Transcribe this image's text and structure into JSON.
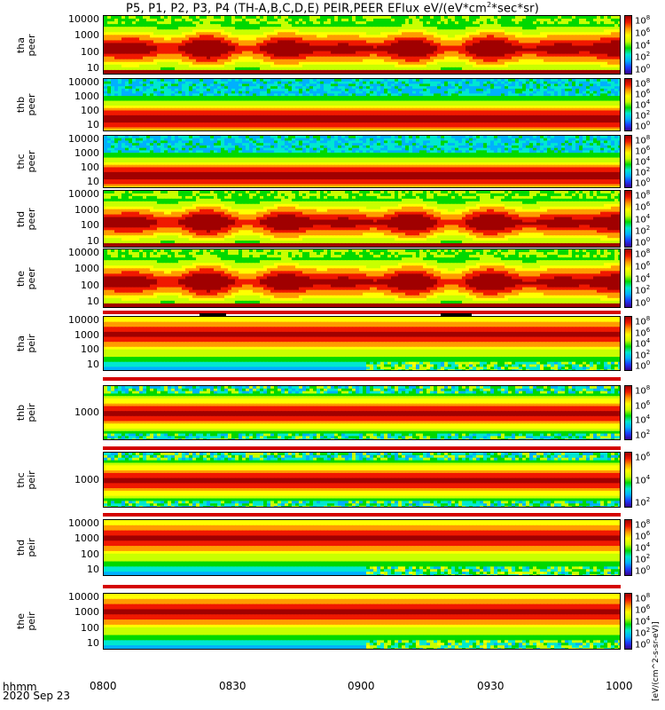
{
  "title": "P5, P1, P2, P3, P4 (TH-A,B,C,D,E) PEIR,PEER EFlux eV/(eV*cm",
  "title_sup": "2",
  "title_tail": "*sec*sr)",
  "time_axis": {
    "label_line1": "hhmm",
    "label_line2": "2020 Sep 23",
    "ticks": [
      "0800",
      "0830",
      "0900",
      "0930",
      "1000"
    ]
  },
  "colorbar_unit": "[eV/(cm^2-s-sr-eV)]",
  "colors": {
    "dark_red": "#a00000",
    "red": "#e80000",
    "orange": "#ff8c00",
    "yellow": "#ffff00",
    "green": "#00d800",
    "cyan": "#00e0ff",
    "blue": "#1a3cff",
    "purple": "#3a0090",
    "bar_red": "#d40000"
  },
  "panels": [
    {
      "probe": "tha",
      "product": "peer",
      "yticks": [
        "10000",
        "1000",
        "100",
        "10"
      ],
      "cticks": [
        [
          "10",
          "8"
        ],
        [
          "10",
          "6"
        ],
        [
          "10",
          "4"
        ],
        [
          "10",
          "2"
        ],
        [
          "10",
          "0"
        ]
      ]
    },
    {
      "probe": "thb",
      "product": "peer",
      "yticks": [
        "10000",
        "1000",
        "100",
        "10"
      ],
      "cticks": [
        [
          "10",
          "8"
        ],
        [
          "10",
          "6"
        ],
        [
          "10",
          "4"
        ],
        [
          "10",
          "2"
        ],
        [
          "10",
          "0"
        ]
      ]
    },
    {
      "probe": "thc",
      "product": "peer",
      "yticks": [
        "10000",
        "1000",
        "100",
        "10"
      ],
      "cticks": [
        [
          "10",
          "8"
        ],
        [
          "10",
          "6"
        ],
        [
          "10",
          "4"
        ],
        [
          "10",
          "2"
        ],
        [
          "10",
          "0"
        ]
      ]
    },
    {
      "probe": "thd",
      "product": "peer",
      "yticks": [
        "10000",
        "1000",
        "100",
        "10"
      ],
      "cticks": [
        [
          "10",
          "8"
        ],
        [
          "10",
          "6"
        ],
        [
          "10",
          "4"
        ],
        [
          "10",
          "2"
        ],
        [
          "10",
          "0"
        ]
      ]
    },
    {
      "probe": "the",
      "product": "peer",
      "yticks": [
        "10000",
        "1000",
        "100",
        "10"
      ],
      "cticks": [
        [
          "10",
          "8"
        ],
        [
          "10",
          "6"
        ],
        [
          "10",
          "4"
        ],
        [
          "10",
          "2"
        ],
        [
          "10",
          "0"
        ]
      ]
    },
    {
      "probe": "tha",
      "product": "peir",
      "yticks": [
        "10000",
        "1000",
        "100",
        "10"
      ],
      "cticks": [
        [
          "10",
          "8"
        ],
        [
          "10",
          "6"
        ],
        [
          "10",
          "4"
        ],
        [
          "10",
          "2"
        ],
        [
          "10",
          "0"
        ]
      ]
    },
    {
      "probe": "thb",
      "product": "peir",
      "yticks": [
        "1000"
      ],
      "cticks": [
        [
          "10",
          "8"
        ],
        [
          "10",
          "6"
        ],
        [
          "10",
          "4"
        ],
        [
          "10",
          "2"
        ]
      ]
    },
    {
      "probe": "thc",
      "product": "peir",
      "yticks": [
        "1000"
      ],
      "cticks": [
        [
          "10",
          "6"
        ],
        [
          "10",
          "4"
        ],
        [
          "10",
          "2"
        ]
      ]
    },
    {
      "probe": "thd",
      "product": "peir",
      "yticks": [
        "10000",
        "1000",
        "100",
        "10"
      ],
      "cticks": [
        [
          "10",
          "8"
        ],
        [
          "10",
          "6"
        ],
        [
          "10",
          "4"
        ],
        [
          "10",
          "2"
        ],
        [
          "10",
          "0"
        ]
      ]
    },
    {
      "probe": "the",
      "product": "peir",
      "yticks": [
        "10000",
        "1000",
        "100",
        "10"
      ],
      "cticks": [
        [
          "10",
          "8"
        ],
        [
          "10",
          "6"
        ],
        [
          "10",
          "4"
        ],
        [
          "10",
          "2"
        ],
        [
          "10",
          "0"
        ]
      ]
    }
  ],
  "chart_data": {
    "type": "heatmap",
    "title": "P5, P1, P2, P3, P4 (TH-A,B,C,D,E) PEIR,PEER EFlux eV/(eV*cm^2*sec*sr)",
    "xlabel": "hhmm 2020 Sep 23",
    "x_ticks": [
      "0800",
      "0830",
      "0900",
      "0930",
      "1000"
    ],
    "y_scale": "log",
    "color_scale": "log",
    "series": [
      {
        "name": "tha peer",
        "ylim": [
          5,
          30000
        ],
        "clim_exp": [
          0,
          8
        ],
        "kind": "electron"
      },
      {
        "name": "thb peer",
        "ylim": [
          5,
          30000
        ],
        "clim_exp": [
          0,
          8
        ],
        "kind": "electron-flat"
      },
      {
        "name": "thc peer",
        "ylim": [
          5,
          30000
        ],
        "clim_exp": [
          0,
          8
        ],
        "kind": "electron-flat"
      },
      {
        "name": "thd peer",
        "ylim": [
          5,
          30000
        ],
        "clim_exp": [
          0,
          8
        ],
        "kind": "electron"
      },
      {
        "name": "the peer",
        "ylim": [
          5,
          30000
        ],
        "clim_exp": [
          0,
          8
        ],
        "kind": "electron"
      },
      {
        "name": "tha peir",
        "ylim": [
          5,
          30000
        ],
        "clim_exp": [
          0,
          8
        ],
        "kind": "ion"
      },
      {
        "name": "thb peir",
        "ylim": [
          100,
          10000
        ],
        "clim_exp": [
          2,
          8
        ],
        "kind": "ion-band"
      },
      {
        "name": "thc peir",
        "ylim": [
          100,
          10000
        ],
        "clim_exp": [
          2,
          7
        ],
        "kind": "ion-band"
      },
      {
        "name": "thd peir",
        "ylim": [
          5,
          30000
        ],
        "clim_exp": [
          0,
          8
        ],
        "kind": "ion"
      },
      {
        "name": "the peir",
        "ylim": [
          5,
          30000
        ],
        "clim_exp": [
          0,
          8
        ],
        "kind": "ion"
      }
    ]
  }
}
